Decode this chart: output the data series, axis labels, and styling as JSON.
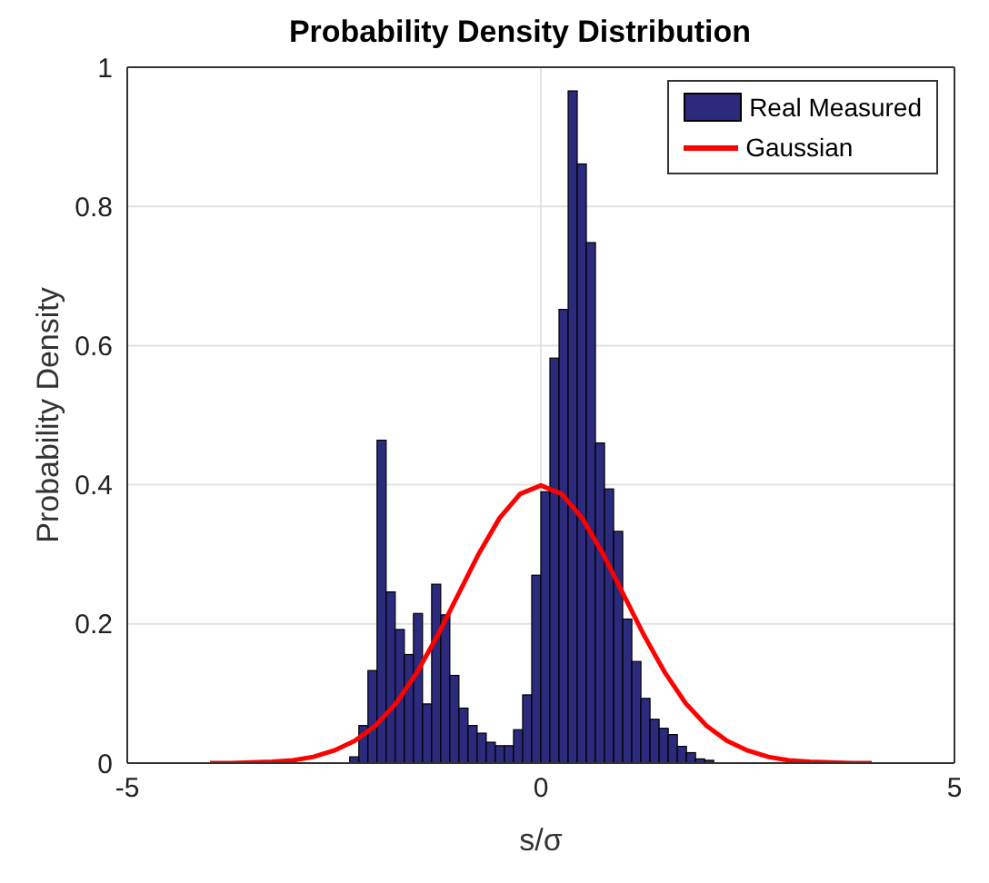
{
  "chart_data": {
    "type": "histogram",
    "title": "Probability Density Distribution",
    "xlabel": "s/σ",
    "ylabel": "Probability Density",
    "xlim": [
      -5,
      5
    ],
    "xticks": [
      -5,
      0,
      5
    ],
    "ylim": [
      0,
      1
    ],
    "yticks": [
      0,
      0.2,
      0.4,
      0.6,
      0.8,
      1
    ],
    "grid": true,
    "legend": "top right",
    "marker": "none",
    "line_style": "solid",
    "series": [
      {
        "name": "Real Measured",
        "color": "#2b2a7c",
        "bins": [
          -2.31,
          -2.2,
          -2.09,
          -1.98,
          -1.87,
          -1.76,
          -1.65,
          -1.54,
          -1.43,
          -1.32,
          -1.21,
          -1.1,
          -0.99,
          -0.88,
          -0.77,
          -0.66,
          -0.55,
          -0.44,
          -0.33,
          -0.22,
          -0.11,
          0,
          0.11,
          0.22,
          0.33,
          0.44,
          0.55,
          0.66,
          0.77,
          0.88,
          0.99,
          1.1,
          1.21,
          1.32,
          1.43,
          1.54,
          1.65,
          1.76,
          1.87,
          1.98,
          2.09
        ],
        "values": [
          0.009,
          0.054,
          0.133,
          0.464,
          0.246,
          0.192,
          0.156,
          0.215,
          0.085,
          0.257,
          0.213,
          0.126,
          0.079,
          0.054,
          0.043,
          0.03,
          0.025,
          0.025,
          0.048,
          0.098,
          0.27,
          0.39,
          0.582,
          0.652,
          0.966,
          0.861,
          0.748,
          0.46,
          0.394,
          0.333,
          0.207,
          0.146,
          0.093,
          0.063,
          0.05,
          0.041,
          0.024,
          0.015,
          0.006,
          0.004
        ]
      },
      {
        "name": "Gaussian",
        "type": "line",
        "color": "#ff0000",
        "x": [
          -4,
          -3.75,
          -3.5,
          -3.25,
          -3,
          -2.75,
          -2.5,
          -2.25,
          -2,
          -1.75,
          -1.5,
          -1.25,
          -1,
          -0.75,
          -0.5,
          -0.25,
          0,
          0.25,
          0.5,
          0.75,
          1,
          1.25,
          1.5,
          1.75,
          2,
          2.25,
          2.5,
          2.75,
          3,
          3.25,
          3.5,
          3.75,
          4
        ],
        "values": [
          0,
          0,
          0.001,
          0.002,
          0.004,
          0.009,
          0.018,
          0.032,
          0.054,
          0.086,
          0.13,
          0.183,
          0.242,
          0.301,
          0.352,
          0.387,
          0.399,
          0.387,
          0.352,
          0.301,
          0.242,
          0.183,
          0.13,
          0.086,
          0.054,
          0.032,
          0.018,
          0.009,
          0.004,
          0.002,
          0.001,
          0,
          0
        ]
      }
    ]
  }
}
